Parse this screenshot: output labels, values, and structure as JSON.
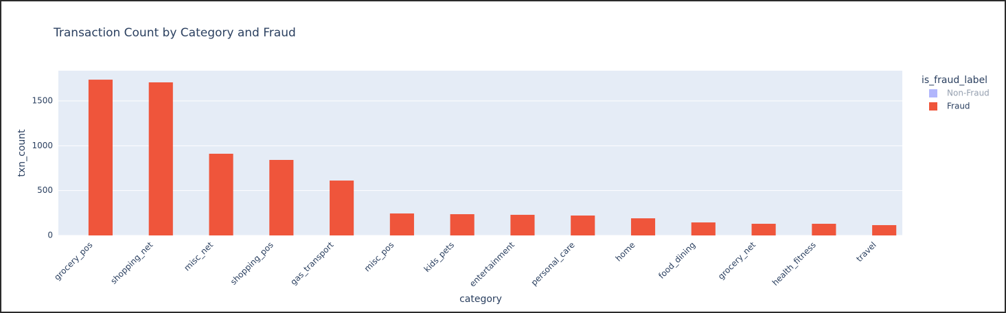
{
  "chart_data": {
    "type": "bar",
    "title": "Transaction Count by Category and Fraud",
    "x_label": "category",
    "y_label": "txn_count",
    "legend_title": "is_fraud_label",
    "categories": [
      "grocery_pos",
      "shopping_net",
      "misc_net",
      "shopping_pos",
      "gas_transport",
      "misc_pos",
      "kids_pets",
      "entertainment",
      "personal_care",
      "home",
      "food_dining",
      "grocery_net",
      "health_fitness",
      "travel"
    ],
    "series": [
      {
        "name": "Non-Fraud",
        "color": "#636efa",
        "visible": "legendonly",
        "values": [
          null,
          null,
          null,
          null,
          null,
          null,
          null,
          null,
          null,
          null,
          null,
          null,
          null,
          null
        ]
      },
      {
        "name": "Fraud",
        "color": "#ef553b",
        "values": [
          1737,
          1707,
          911,
          842,
          612,
          245,
          237,
          230,
          222,
          191,
          145,
          130,
          130,
          115
        ]
      }
    ],
    "ylim": [
      0,
      1837
    ],
    "yticks": [
      0,
      500,
      1000,
      1500
    ],
    "grid": true,
    "legend": "right"
  }
}
